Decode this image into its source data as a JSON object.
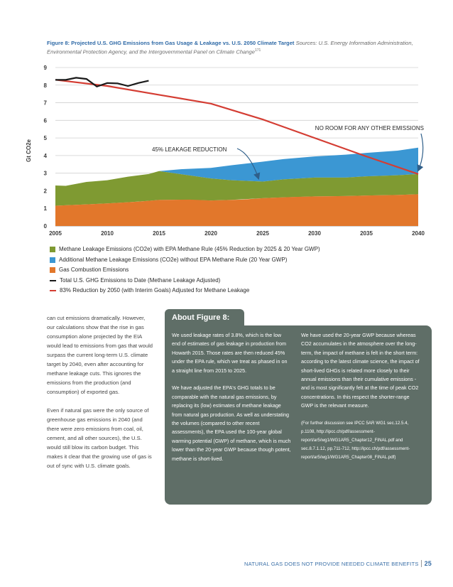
{
  "caption": {
    "title": "Figure 8: Projected U.S. GHG Emissions from Gas Usage & Leakage vs. U.S. 2050 Climate Target",
    "source": "Sources: U.S. Energy Information Administration, Environmental Protection Agency, and the Intergovernmental Panel on Climate Change",
    "source_note": "171"
  },
  "chart_data": {
    "type": "area",
    "ylabel": "Gt CO2e",
    "ylim": [
      0,
      9
    ],
    "xlim": [
      2005,
      2040
    ],
    "x_ticks": [
      2005,
      2010,
      2015,
      2020,
      2025,
      2030,
      2035,
      2040
    ],
    "y_ticks": [
      0,
      1,
      2,
      3,
      4,
      5,
      6,
      7,
      8,
      9
    ],
    "grid": true,
    "colors": {
      "combustion": "#e2772b",
      "methane_epa": "#7f9a32",
      "methane_no_epa": "#3b97d3",
      "total": "#1a1a1a",
      "target": "#d43d33"
    },
    "series": [
      {
        "name": "Gas Combustion Emissions",
        "kind": "area",
        "x": [
          2005,
          2007,
          2010,
          2013,
          2015,
          2018,
          2020,
          2023,
          2025,
          2028,
          2030,
          2033,
          2035,
          2038,
          2040
        ],
        "values": [
          1.15,
          1.2,
          1.28,
          1.38,
          1.48,
          1.5,
          1.45,
          1.5,
          1.58,
          1.65,
          1.68,
          1.7,
          1.73,
          1.76,
          1.8
        ]
      },
      {
        "name": "Methane Leakage Emissions (CO2e) with EPA Methane Rule (45% Reduction by 2025 & 20 Year GWP)",
        "kind": "stacked_top",
        "x": [
          2005,
          2006,
          2008,
          2010,
          2012,
          2014,
          2015,
          2017,
          2020,
          2022,
          2025,
          2027,
          2030,
          2033,
          2035,
          2038,
          2040
        ],
        "values": [
          2.3,
          2.28,
          2.5,
          2.6,
          2.8,
          2.95,
          3.12,
          2.95,
          2.7,
          2.6,
          2.52,
          2.65,
          2.75,
          2.75,
          2.82,
          2.88,
          2.95
        ]
      },
      {
        "name": "Additional Methane Leakage Emissions (CO2e) without EPA Methane Rule (20 Year GWP)",
        "kind": "stacked_top",
        "x": [
          2015,
          2017,
          2020,
          2022,
          2025,
          2027,
          2030,
          2033,
          2035,
          2038,
          2040
        ],
        "values": [
          3.12,
          3.22,
          3.3,
          3.45,
          3.65,
          3.8,
          3.95,
          4.05,
          4.15,
          4.28,
          4.45
        ]
      },
      {
        "name": "Total U.S. GHG Emissions to Date (Methane Leakage Adjusted)",
        "kind": "line",
        "x": [
          2005,
          2006,
          2007,
          2008,
          2009,
          2010,
          2011,
          2012,
          2013,
          2014
        ],
        "values": [
          8.3,
          8.3,
          8.42,
          8.35,
          7.92,
          8.12,
          8.1,
          7.95,
          8.12,
          8.25
        ]
      },
      {
        "name": "83% Reduction by 2050 (with Interim Goals) Adjusted for Methane Leakage",
        "kind": "line",
        "x": [
          2005,
          2010,
          2015,
          2020,
          2025,
          2030,
          2035,
          2040
        ],
        "values": [
          8.3,
          7.95,
          7.45,
          6.95,
          6.05,
          5.0,
          3.95,
          2.95
        ]
      }
    ],
    "annotations": [
      {
        "text": "45% LEAKAGE REDUCTION",
        "arrow_to": [
          2025,
          2.55
        ]
      },
      {
        "text": "NO ROOM FOR ANY OTHER EMISSIONS",
        "arrow_to": [
          2040,
          3.0
        ]
      }
    ]
  },
  "legend": [
    {
      "type": "swatch",
      "color": "#7f9a32",
      "label": "Methane Leakage Emissions (CO2e) with EPA Methane Rule (45% Reduction by 2025 & 20 Year GWP)"
    },
    {
      "type": "swatch",
      "color": "#3b97d3",
      "label": "Additional Methane Leakage Emissions (CO2e) without EPA Methane Rule (20 Year GWP)"
    },
    {
      "type": "swatch",
      "color": "#e2772b",
      "label": "Gas Combustion Emissions"
    },
    {
      "type": "line",
      "color": "#1a1a1a",
      "label": "Total U.S. GHG Emissions to Date (Methane Leakage Adjusted)"
    },
    {
      "type": "line",
      "color": "#d43d33",
      "label": "83% Reduction by 2050 (with Interim Goals) Adjusted for Methane Leakage"
    }
  ],
  "body_paragraphs": [
    "can cut emissions dramatically. However, our calculations show that the rise in gas consumption alone projected by the EIA would lead to emissions from gas that would surpass the current long-term U.S. climate target by 2040, even after accounting for methane leakage cuts. This ignores the emissions from the production (and consumption) of exported gas.",
    "Even if natural gas were the only source of greenhouse gas emissions in 2040 (and there were zero emissions from coal, oil, cement, and all other sources), the U.S. would still blow its carbon budget. This makes it clear that the growing use of gas is out of sync with U.S. climate goals."
  ],
  "about": {
    "title": "About Figure 8:",
    "left": [
      "We used leakage rates of 3.8%, which is the low end of estimates of gas leakage in production from Howarth 2015. Those rates are then reduced 45% under the EPA rule, which we treat as phased in on a straight line from 2015 to 2025.",
      "We have adjusted the EPA's GHG totals to be comparable with the natural gas emissions, by replacing its (low) estimates of methane leakage from natural gas production. As well as understating the volumes (compared to other recent assessments), the EPA used the 100-year global warming potential (GWP) of methane, which is much lower than the 20-year GWP because though potent, methane is short-lived."
    ],
    "right": [
      "We have used the 20-year GWP because whereas CO2 accumulates in the atmosphere over the long-term, the impact of methane is felt in the short term: according to the latest climate science, the impact of short-lived GHGs is related more closely to their annual emissions than their cumulative emissions - and is most significantly felt at the time of peak CO2 concentrations. In this respect the shorter-range GWP is the relevant measure."
    ],
    "note": "(For further discussion see IPCC 5AR WG1 sec.12.5.4, p.1108, http://ipcc.ch/pdf/assessment-report/ar5/wg1/WG1AR5_Chapter12_FINAL.pdf and sec.8.7.1.12, pp.711-712, http://ipcc.ch/pdf/assessment-report/ar5/wg1/WG1AR5_Chapter08_FINAL.pdf)"
  },
  "footer": {
    "text": "NATURAL GAS DOES NOT PROVIDE NEEDED CLIMATE BENEFITS",
    "page": "25"
  }
}
